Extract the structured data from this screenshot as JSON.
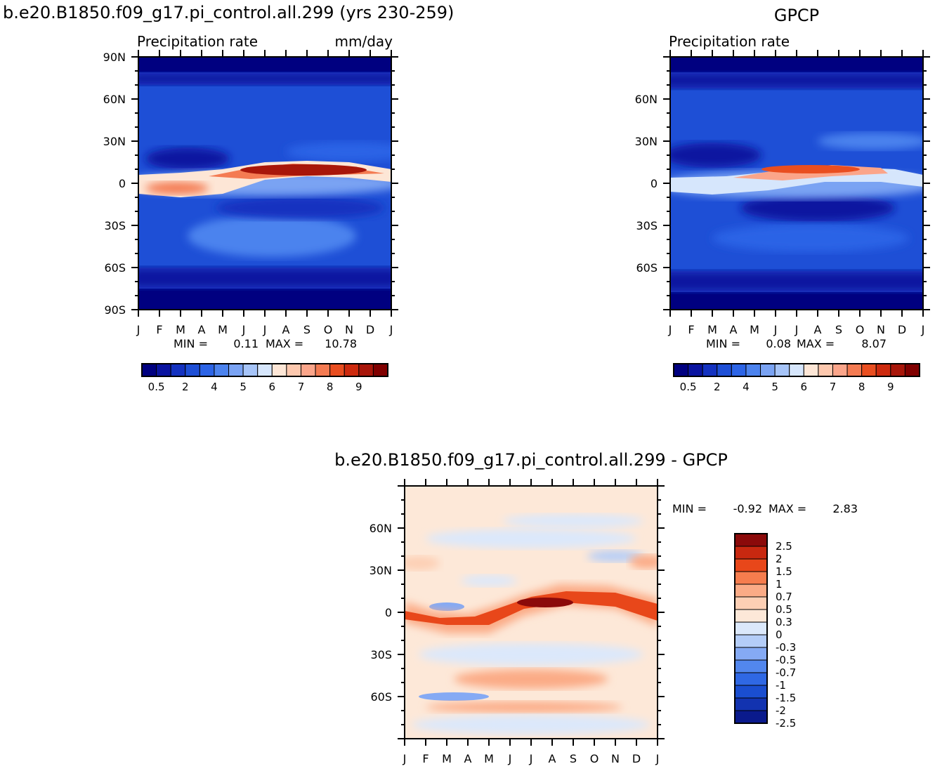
{
  "left_title": "b.e20.B1850.f09_g17.pi_control.all.299 (yrs 230-259)",
  "right_title": "GPCP",
  "diff_title": "b.e20.B1850.f09_g17.pi_control.all.299 - GPCP",
  "colors": {
    "abs_palette": [
      "#000080",
      "#0a14a0",
      "#1432c0",
      "#1e4fd6",
      "#2c64e6",
      "#4c83ee",
      "#7aa3f3",
      "#a6c4f8",
      "#d6e6fc",
      "#fde6d6",
      "#fdc8ae",
      "#fba58a",
      "#f47b52",
      "#e94e20",
      "#cd2a0e",
      "#a8160a",
      "#800000"
    ],
    "diff_palette": [
      "#0a1a8c",
      "#1233b0",
      "#1a4ed0",
      "#2f68e4",
      "#5287ee",
      "#85aaf4",
      "#b4cdf8",
      "#dbe8fb",
      "#fde8d8",
      "#fdcfb4",
      "#fbab86",
      "#f67d4e",
      "#e8471a",
      "#c82810",
      "#8b0a0a"
    ]
  },
  "chart_data": [
    {
      "type": "heatmap",
      "name": "model",
      "title": "b.e20.B1850.f09_g17.pi_control.all.299 (yrs 230-259)",
      "left_label": "Precipitation rate",
      "right_label": "mm/day",
      "x_ticks": [
        "J",
        "F",
        "M",
        "A",
        "M",
        "J",
        "J",
        "A",
        "S",
        "O",
        "N",
        "D",
        "J"
      ],
      "y_ticks": [
        "90N",
        "60N",
        "30N",
        "0",
        "30S",
        "60S",
        "90S"
      ],
      "y_tick_values": [
        90,
        60,
        30,
        0,
        -30,
        -60,
        -90
      ],
      "ylim": [
        -90,
        90
      ],
      "min_label": "MIN =",
      "min_value": "0.11",
      "max_label": "MAX =",
      "max_value": "10.78",
      "colorbar": {
        "orientation": "horizontal",
        "levels": [
          0.2,
          0.5,
          1,
          2,
          3,
          4,
          4.5,
          5,
          5.5,
          6,
          6.5,
          7,
          7.5,
          8,
          8.5,
          9
        ],
        "tick_labels": [
          "0.5",
          "2",
          "4",
          "5",
          "6",
          "7",
          "8",
          "9"
        ]
      }
    },
    {
      "type": "heatmap",
      "name": "obs",
      "title": "GPCP",
      "left_label": "Precipitation rate",
      "x_ticks": [
        "J",
        "F",
        "M",
        "A",
        "M",
        "J",
        "J",
        "A",
        "S",
        "O",
        "N",
        "D",
        "J"
      ],
      "y_ticks": [
        "60N",
        "30N",
        "0",
        "30S",
        "60S"
      ],
      "y_tick_values": [
        60,
        30,
        0,
        -30,
        -60
      ],
      "ylim": [
        -90,
        90
      ],
      "min_label": "MIN =",
      "min_value": "0.08",
      "max_label": "MAX =",
      "max_value": "8.07",
      "colorbar": {
        "orientation": "horizontal",
        "levels": [
          0.2,
          0.5,
          1,
          2,
          3,
          4,
          4.5,
          5,
          5.5,
          6,
          6.5,
          7,
          7.5,
          8,
          8.5,
          9
        ],
        "tick_labels": [
          "0.5",
          "2",
          "4",
          "5",
          "6",
          "7",
          "8",
          "9"
        ]
      }
    },
    {
      "type": "heatmap",
      "name": "difference",
      "title": "b.e20.B1850.f09_g17.pi_control.all.299 - GPCP",
      "x_ticks": [
        "J",
        "F",
        "M",
        "A",
        "M",
        "J",
        "J",
        "A",
        "S",
        "O",
        "N",
        "D",
        "J"
      ],
      "y_ticks": [
        "60N",
        "30N",
        "0",
        "30S",
        "60S"
      ],
      "y_tick_values": [
        60,
        30,
        0,
        -30,
        -60
      ],
      "ylim": [
        -90,
        90
      ],
      "min_label": "MIN =",
      "min_value": "-0.92",
      "max_label": "MAX =",
      "max_value": "2.83",
      "colorbar": {
        "orientation": "vertical",
        "tick_labels": [
          "2.5",
          "2",
          "1.5",
          "1",
          "0.7",
          "0.5",
          "0.3",
          "0",
          "-0.3",
          "-0.5",
          "-0.7",
          "-1",
          "-1.5",
          "-2",
          "-2.5"
        ]
      }
    }
  ]
}
